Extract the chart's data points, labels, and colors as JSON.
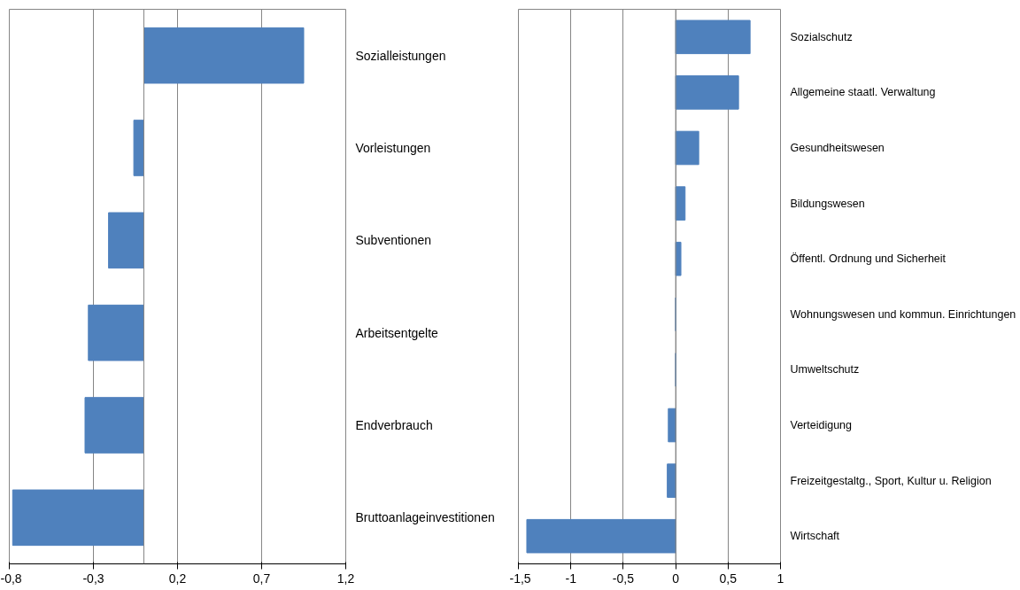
{
  "chart_data": [
    {
      "type": "bar",
      "orientation": "horizontal",
      "categories": [
        "Sozialleistungen",
        "Vorleistungen",
        "Subventionen",
        "Arbeitsentgelte",
        "Endverbrauch",
        "Bruttoanlageinvestitionen"
      ],
      "values": [
        0.95,
        -0.06,
        -0.21,
        -0.33,
        -0.35,
        -0.78
      ],
      "color": "#4f81bd",
      "xlim": [
        -0.8,
        1.2
      ],
      "xticks": [
        {
          "value": -0.8,
          "label": "-0,8"
        },
        {
          "value": -0.3,
          "label": "-0,3"
        },
        {
          "value": 0.2,
          "label": "0,2"
        },
        {
          "value": 0.7,
          "label": "0,7"
        },
        {
          "value": 1.2,
          "label": "1,2"
        }
      ],
      "grid": "x"
    },
    {
      "type": "bar",
      "orientation": "horizontal",
      "categories": [
        "Sozialschutz",
        "Allgemeine staatl. Verwaltung",
        "Gesundheitswesen",
        "Bildungswesen",
        "Öffentl. Ordnung und Sicherheit",
        "Wohnungswesen und kommun. Einrichtungen",
        "Umweltschutz",
        "Verteidigung",
        "Freizeitgestaltg., Sport, Kultur u. Religion",
        "Wirtschaft"
      ],
      "values": [
        0.71,
        0.6,
        0.22,
        0.09,
        0.05,
        0,
        0,
        -0.07,
        -0.08,
        -1.42
      ],
      "color": "#4f81bd",
      "xlim": [
        -1.5,
        1
      ],
      "xticks": [
        {
          "value": -1.5,
          "label": "-1,5"
        },
        {
          "value": -1,
          "label": "-1"
        },
        {
          "value": -0.5,
          "label": "-0,5"
        },
        0,
        {
          "value": 0.5,
          "label": "0,5"
        },
        1
      ],
      "grid": "x"
    }
  ]
}
